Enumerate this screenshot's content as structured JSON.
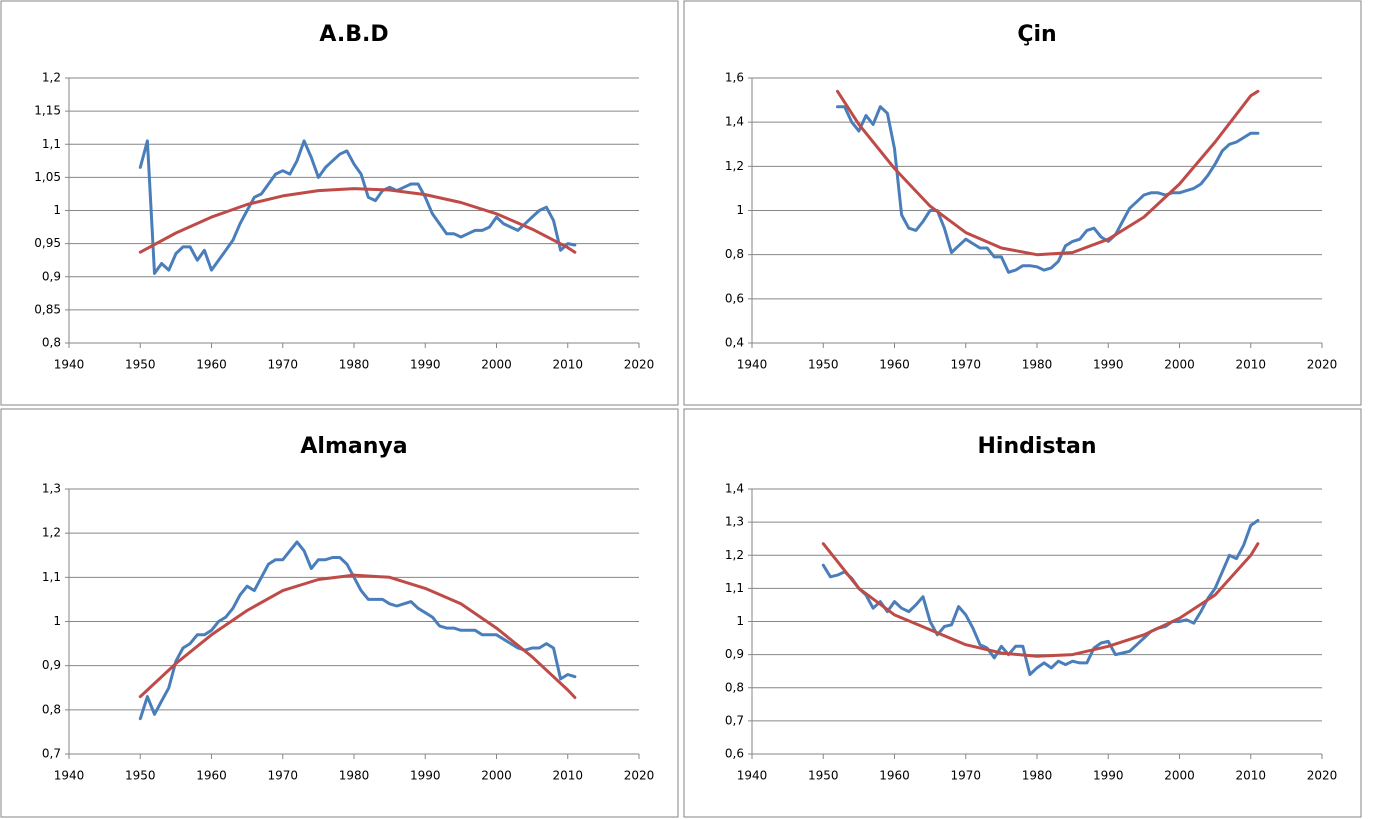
{
  "chart_data": [
    {
      "type": "line",
      "title": "A.B.D",
      "xlim": [
        1940,
        2020
      ],
      "xticks": [
        1940,
        1950,
        1960,
        1970,
        1980,
        1990,
        2000,
        2010,
        2020
      ],
      "ylim": [
        0.8,
        1.2
      ],
      "yticks": [
        {
          "value": 0.8,
          "label": "0,8"
        },
        {
          "value": 0.85,
          "label": "0,85"
        },
        {
          "value": 0.9,
          "label": "0,9"
        },
        {
          "value": 0.95,
          "label": "0,95"
        },
        1,
        {
          "value": 1.05,
          "label": "1,05"
        },
        {
          "value": 1.1,
          "label": "1,1"
        },
        {
          "value": 1.15,
          "label": "1,15"
        },
        {
          "value": 1.2,
          "label": "1,2"
        }
      ],
      "grid": true,
      "series": [
        {
          "color": "#4a7ebb",
          "x": [
            1950,
            1951,
            1952,
            1953,
            1954,
            1955,
            1956,
            1957,
            1958,
            1959,
            1960,
            1961,
            1962,
            1963,
            1964,
            1965,
            1966,
            1967,
            1968,
            1969,
            1970,
            1971,
            1972,
            1973,
            1974,
            1975,
            1976,
            1977,
            1978,
            1979,
            1980,
            1981,
            1982,
            1983,
            1984,
            1985,
            1986,
            1987,
            1988,
            1989,
            1990,
            1991,
            1992,
            1993,
            1994,
            1995,
            1996,
            1997,
            1998,
            1999,
            2000,
            2001,
            2002,
            2003,
            2004,
            2005,
            2006,
            2007,
            2008,
            2009,
            2010,
            2011
          ],
          "values": [
            1.065,
            1.105,
            0.905,
            0.92,
            0.91,
            0.935,
            0.945,
            0.945,
            0.925,
            0.94,
            0.91,
            0.925,
            0.94,
            0.955,
            0.98,
            1.0,
            1.02,
            1.025,
            1.04,
            1.055,
            1.06,
            1.055,
            1.075,
            1.105,
            1.08,
            1.05,
            1.065,
            1.075,
            1.085,
            1.09,
            1.07,
            1.055,
            1.02,
            1.015,
            1.03,
            1.035,
            1.03,
            1.035,
            1.04,
            1.04,
            1.02,
            0.995,
            0.98,
            0.965,
            0.965,
            0.96,
            0.965,
            0.97,
            0.97,
            0.975,
            0.99,
            0.98,
            0.975,
            0.97,
            0.98,
            0.99,
            1.0,
            1.005,
            0.985,
            0.94,
            0.95,
            0.948
          ]
        },
        {
          "color": "#be4b48",
          "x": [
            1950,
            1955,
            1960,
            1965,
            1970,
            1975,
            1980,
            1985,
            1990,
            1995,
            2000,
            2005,
            2010,
            2011
          ],
          "values": [
            0.937,
            0.966,
            0.99,
            1.009,
            1.022,
            1.03,
            1.033,
            1.031,
            1.024,
            1.012,
            0.995,
            0.972,
            0.944,
            0.937
          ]
        }
      ]
    },
    {
      "type": "line",
      "title": "Çin",
      "xlim": [
        1940,
        2020
      ],
      "xticks": [
        1940,
        1950,
        1960,
        1970,
        1980,
        1990,
        2000,
        2010,
        2020
      ],
      "ylim": [
        0.4,
        1.6
      ],
      "yticks": [
        {
          "value": 0.4,
          "label": "0,4"
        },
        {
          "value": 0.6,
          "label": "0,6"
        },
        {
          "value": 0.8,
          "label": "0,8"
        },
        1,
        {
          "value": 1.2,
          "label": "1,2"
        },
        {
          "value": 1.4,
          "label": "1,4"
        },
        {
          "value": 1.6,
          "label": "1,6"
        }
      ],
      "grid": true,
      "series": [
        {
          "color": "#4a7ebb",
          "x": [
            1952,
            1953,
            1954,
            1955,
            1956,
            1957,
            1958,
            1959,
            1960,
            1961,
            1962,
            1963,
            1964,
            1965,
            1966,
            1967,
            1968,
            1969,
            1970,
            1971,
            1972,
            1973,
            1974,
            1975,
            1976,
            1977,
            1978,
            1979,
            1980,
            1981,
            1982,
            1983,
            1984,
            1985,
            1986,
            1987,
            1988,
            1989,
            1990,
            1991,
            1992,
            1993,
            1994,
            1995,
            1996,
            1997,
            1998,
            1999,
            2000,
            2001,
            2002,
            2003,
            2004,
            2005,
            2006,
            2007,
            2008,
            2009,
            2010,
            2011
          ],
          "values": [
            1.47,
            1.47,
            1.4,
            1.36,
            1.43,
            1.39,
            1.47,
            1.44,
            1.28,
            0.98,
            0.92,
            0.91,
            0.95,
            1.0,
            1.0,
            0.92,
            0.81,
            0.84,
            0.87,
            0.85,
            0.83,
            0.83,
            0.79,
            0.79,
            0.72,
            0.73,
            0.75,
            0.75,
            0.745,
            0.73,
            0.74,
            0.77,
            0.84,
            0.86,
            0.87,
            0.91,
            0.92,
            0.88,
            0.86,
            0.89,
            0.95,
            1.01,
            1.04,
            1.07,
            1.08,
            1.08,
            1.07,
            1.08,
            1.08,
            1.09,
            1.1,
            1.12,
            1.16,
            1.21,
            1.27,
            1.3,
            1.31,
            1.33,
            1.35,
            1.35
          ]
        },
        {
          "color": "#be4b48",
          "x": [
            1952,
            1955,
            1960,
            1965,
            1970,
            1975,
            1980,
            1985,
            1990,
            1995,
            2000,
            2005,
            2010,
            2011
          ],
          "values": [
            1.54,
            1.39,
            1.19,
            1.02,
            0.9,
            0.83,
            0.8,
            0.81,
            0.87,
            0.97,
            1.12,
            1.31,
            1.52,
            1.54
          ]
        }
      ]
    },
    {
      "type": "line",
      "title": "Almanya",
      "xlim": [
        1940,
        2020
      ],
      "xticks": [
        1940,
        1950,
        1960,
        1970,
        1980,
        1990,
        2000,
        2010,
        2020
      ],
      "ylim": [
        0.7,
        1.3
      ],
      "yticks": [
        {
          "value": 0.7,
          "label": "0,7"
        },
        {
          "value": 0.8,
          "label": "0,8"
        },
        {
          "value": 0.9,
          "label": "0,9"
        },
        1,
        {
          "value": 1.1,
          "label": "1,1"
        },
        {
          "value": 1.2,
          "label": "1,2"
        },
        {
          "value": 1.3,
          "label": "1,3"
        }
      ],
      "grid": true,
      "series": [
        {
          "color": "#4a7ebb",
          "x": [
            1950,
            1951,
            1952,
            1953,
            1954,
            1955,
            1956,
            1957,
            1958,
            1959,
            1960,
            1961,
            1962,
            1963,
            1964,
            1965,
            1966,
            1967,
            1968,
            1969,
            1970,
            1971,
            1972,
            1973,
            1974,
            1975,
            1976,
            1977,
            1978,
            1979,
            1980,
            1981,
            1982,
            1983,
            1984,
            1985,
            1986,
            1987,
            1988,
            1989,
            1990,
            1991,
            1992,
            1993,
            1994,
            1995,
            1996,
            1997,
            1998,
            1999,
            2000,
            2001,
            2002,
            2003,
            2004,
            2005,
            2006,
            2007,
            2008,
            2009,
            2010,
            2011
          ],
          "values": [
            0.78,
            0.83,
            0.79,
            0.82,
            0.85,
            0.91,
            0.94,
            0.95,
            0.97,
            0.97,
            0.98,
            1.0,
            1.01,
            1.03,
            1.06,
            1.08,
            1.07,
            1.1,
            1.13,
            1.14,
            1.14,
            1.16,
            1.18,
            1.16,
            1.12,
            1.14,
            1.14,
            1.145,
            1.145,
            1.13,
            1.1,
            1.07,
            1.05,
            1.05,
            1.05,
            1.04,
            1.035,
            1.04,
            1.045,
            1.03,
            1.02,
            1.01,
            0.99,
            0.985,
            0.985,
            0.98,
            0.98,
            0.98,
            0.97,
            0.97,
            0.97,
            0.96,
            0.95,
            0.94,
            0.935,
            0.94,
            0.94,
            0.95,
            0.94,
            0.87,
            0.88,
            0.875
          ]
        },
        {
          "color": "#be4b48",
          "x": [
            1950,
            1955,
            1960,
            1965,
            1970,
            1975,
            1980,
            1985,
            1990,
            1995,
            2000,
            2005,
            2010,
            2011
          ],
          "values": [
            0.83,
            0.905,
            0.97,
            1.025,
            1.07,
            1.095,
            1.105,
            1.1,
            1.075,
            1.04,
            0.985,
            0.92,
            0.845,
            0.828
          ]
        }
      ]
    },
    {
      "type": "line",
      "title": "Hindistan",
      "xlim": [
        1940,
        2020
      ],
      "xticks": [
        1940,
        1950,
        1960,
        1970,
        1980,
        1990,
        2000,
        2010,
        2020
      ],
      "ylim": [
        0.6,
        1.4
      ],
      "yticks": [
        {
          "value": 0.6,
          "label": "0,6"
        },
        {
          "value": 0.7,
          "label": "0,7"
        },
        {
          "value": 0.8,
          "label": "0,8"
        },
        {
          "value": 0.9,
          "label": "0,9"
        },
        1,
        {
          "value": 1.1,
          "label": "1,1"
        },
        {
          "value": 1.2,
          "label": "1,2"
        },
        {
          "value": 1.3,
          "label": "1,3"
        },
        {
          "value": 1.4,
          "label": "1,4"
        }
      ],
      "grid": true,
      "series": [
        {
          "color": "#4a7ebb",
          "x": [
            1950,
            1951,
            1952,
            1953,
            1954,
            1955,
            1956,
            1957,
            1958,
            1959,
            1960,
            1961,
            1962,
            1963,
            1964,
            1965,
            1966,
            1967,
            1968,
            1969,
            1970,
            1971,
            1972,
            1973,
            1974,
            1975,
            1976,
            1977,
            1978,
            1979,
            1980,
            1981,
            1982,
            1983,
            1984,
            1985,
            1986,
            1987,
            1988,
            1989,
            1990,
            1991,
            1992,
            1993,
            1994,
            1995,
            1996,
            1997,
            1998,
            1999,
            2000,
            2001,
            2002,
            2003,
            2004,
            2005,
            2006,
            2007,
            2008,
            2009,
            2010,
            2011
          ],
          "values": [
            1.17,
            1.135,
            1.14,
            1.15,
            1.13,
            1.1,
            1.08,
            1.04,
            1.06,
            1.03,
            1.06,
            1.04,
            1.03,
            1.05,
            1.075,
            1.0,
            0.96,
            0.985,
            0.99,
            1.045,
            1.02,
            0.98,
            0.93,
            0.92,
            0.89,
            0.925,
            0.9,
            0.925,
            0.925,
            0.84,
            0.86,
            0.875,
            0.86,
            0.88,
            0.87,
            0.88,
            0.875,
            0.875,
            0.92,
            0.935,
            0.94,
            0.9,
            0.905,
            0.91,
            0.93,
            0.95,
            0.97,
            0.98,
            0.985,
            1.0,
            1.0,
            1.005,
            0.995,
            1.03,
            1.07,
            1.1,
            1.15,
            1.2,
            1.19,
            1.23,
            1.29,
            1.305
          ]
        },
        {
          "color": "#be4b48",
          "x": [
            1950,
            1955,
            1960,
            1965,
            1970,
            1975,
            1980,
            1985,
            1990,
            1995,
            2000,
            2005,
            2010,
            2011
          ],
          "values": [
            1.235,
            1.1,
            1.02,
            0.975,
            0.93,
            0.905,
            0.895,
            0.9,
            0.925,
            0.96,
            1.01,
            1.08,
            1.2,
            1.235
          ]
        }
      ]
    }
  ]
}
